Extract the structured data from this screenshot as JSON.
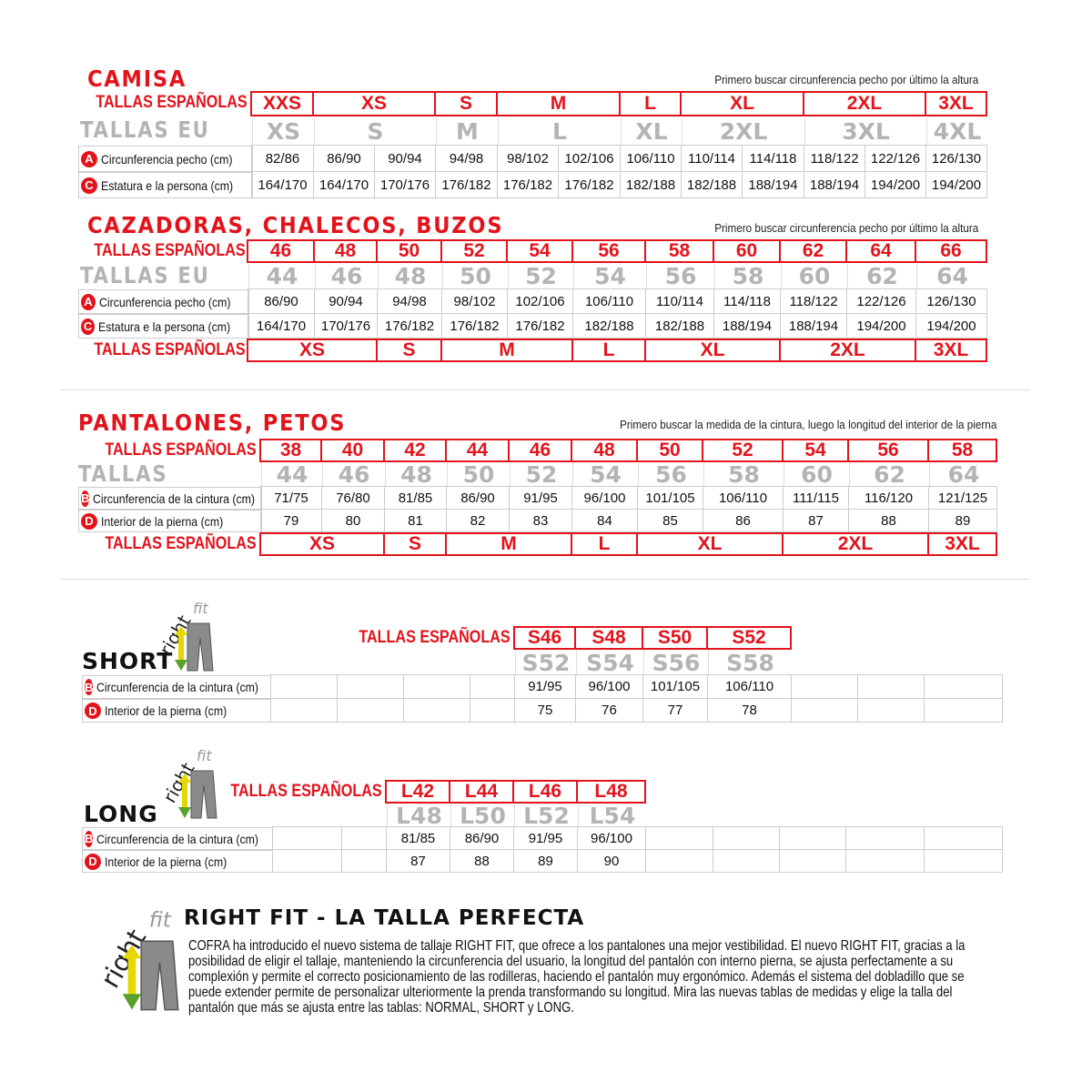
{
  "camisa": {
    "title": "CAMISA",
    "note": "Primero buscar circunferencia pecho por último la altura",
    "es_label": "TALLAS ESPAÑOLAS",
    "eu_label": "TALLAS EU",
    "es": [
      "XXS",
      "XS",
      "S",
      "M",
      "L",
      "XL",
      "2XL",
      "3XL"
    ],
    "eu": [
      "XS",
      "S",
      "M",
      "L",
      "XL",
      "2XL",
      "3XL",
      "4XL"
    ],
    "rows": [
      {
        "badge": "A",
        "label": "Circunferencia pecho (cm)",
        "values": [
          "82/86",
          "86/90",
          "90/94",
          "94/98",
          "98/102",
          "102/106",
          "106/110",
          "110/114",
          "114/118",
          "118/122",
          "122/126",
          "126/130"
        ]
      },
      {
        "badge": "C",
        "label": "Estatura e la persona (cm)",
        "values": [
          "164/170",
          "164/170",
          "170/176",
          "176/182",
          "176/182",
          "176/182",
          "182/188",
          "182/188",
          "188/194",
          "188/194",
          "194/200",
          "194/200"
        ]
      }
    ]
  },
  "cazadoras": {
    "title": "CAZADORAS, CHALECOS, BUZOS",
    "note": "Primero buscar circunferencia pecho por último la altura",
    "es_label": "TALLAS ESPAÑOLAS",
    "eu_label": "TALLAS EU",
    "es": [
      "46",
      "48",
      "50",
      "52",
      "54",
      "56",
      "58",
      "60",
      "62",
      "64",
      "66"
    ],
    "eu": [
      "44",
      "46",
      "48",
      "50",
      "52",
      "54",
      "56",
      "58",
      "60",
      "62",
      "64"
    ],
    "rows": [
      {
        "badge": "A",
        "label": "Circunferencia pecho (cm)",
        "values": [
          "86/90",
          "90/94",
          "94/98",
          "98/102",
          "102/106",
          "106/110",
          "110/114",
          "114/118",
          "118/122",
          "122/126",
          "126/130"
        ]
      },
      {
        "badge": "C",
        "label": "Estatura e la persona (cm)",
        "values": [
          "164/170",
          "170/176",
          "176/182",
          "176/182",
          "176/182",
          "182/188",
          "182/188",
          "188/194",
          "188/194",
          "194/200",
          "194/200"
        ]
      }
    ],
    "bottom_label": "TALLAS ESPAÑOLAS",
    "bottom": [
      "XS",
      "S",
      "M",
      "L",
      "XL",
      "2XL",
      "3XL"
    ]
  },
  "pantalones": {
    "title": "PANTALONES, PETOS",
    "note": "Primero buscar la medida de la cintura, luego la longitud del interior de la pierna",
    "es_label": "TALLAS ESPAÑOLAS",
    "eu_label": "TALLAS",
    "es": [
      "38",
      "40",
      "42",
      "44",
      "46",
      "48",
      "50",
      "52",
      "54",
      "56",
      "58"
    ],
    "eu": [
      "44",
      "46",
      "48",
      "50",
      "52",
      "54",
      "56",
      "58",
      "60",
      "62",
      "64"
    ],
    "rows": [
      {
        "badge": "B",
        "label": "Circunferencia de la cintura (cm)",
        "values": [
          "71/75",
          "76/80",
          "81/85",
          "86/90",
          "91/95",
          "96/100",
          "101/105",
          "106/110",
          "111/115",
          "116/120",
          "121/125"
        ]
      },
      {
        "badge": "D",
        "label": "Interior de la pierna (cm)",
        "values": [
          "79",
          "80",
          "81",
          "82",
          "83",
          "84",
          "85",
          "86",
          "87",
          "88",
          "89"
        ]
      }
    ],
    "bottom_label": "TALLAS ESPAÑOLAS",
    "bottom": [
      "XS",
      "S",
      "M",
      "L",
      "XL",
      "2XL",
      "3XL"
    ]
  },
  "short": {
    "title": "SHORT",
    "logo": "rightfit",
    "es_label": "TALLAS ESPAÑOLAS",
    "es": [
      "S46",
      "S48",
      "S50",
      "S52"
    ],
    "eu": [
      "S52",
      "S54",
      "S56",
      "S58"
    ],
    "rows": [
      {
        "badge": "B",
        "label": "Circunferencia de la cintura (cm)",
        "values": [
          "91/95",
          "96/100",
          "101/105",
          "106/110"
        ]
      },
      {
        "badge": "D",
        "label": "Interior de la pierna (cm)",
        "values": [
          "75",
          "76",
          "77",
          "78"
        ]
      }
    ]
  },
  "long": {
    "title": "LONG",
    "logo": "rightfit",
    "es_label": "TALLAS ESPAÑOLAS",
    "es": [
      "L42",
      "L44",
      "L46",
      "L48"
    ],
    "eu": [
      "L48",
      "L50",
      "L52",
      "L54"
    ],
    "rows": [
      {
        "badge": "B",
        "label": "Circunferencia de la cintura (cm)",
        "values": [
          "81/85",
          "86/90",
          "91/95",
          "96/100"
        ]
      },
      {
        "badge": "D",
        "label": "Interior de la pierna (cm)",
        "values": [
          "87",
          "88",
          "89",
          "90"
        ]
      }
    ]
  },
  "rightfit": {
    "logo": "rightfit",
    "title": "RIGHT FIT - LA TALLA PERFECTA",
    "text": "COFRA ha introducido el nuevo sistema de tallaje RIGHT FIT, que ofrece a los pantalones una mejor vestibilidad. El nuevo RIGHT FIT, gracias a la posibilidad de eligir el tallaje, manteniendo la circunferencia del usuario, la longitud del pantalón con interno pierna, se ajusta perfectamente a su complexión y permite el correcto posicionamiento de las rodilleras, haciendo el pantalón muy ergonómico. Además el sistema del dobladillo que se puede extender permite de personalizar ulteriormente la prenda transformando su longitud. Mira las nuevas tablas de medidas y elige la talla del pantalón que más se ajusta entre las tablas: NORMAL, SHORT y LONG."
  },
  "colors": {
    "red": "#e3131b",
    "gray": "#b4b4b4"
  }
}
